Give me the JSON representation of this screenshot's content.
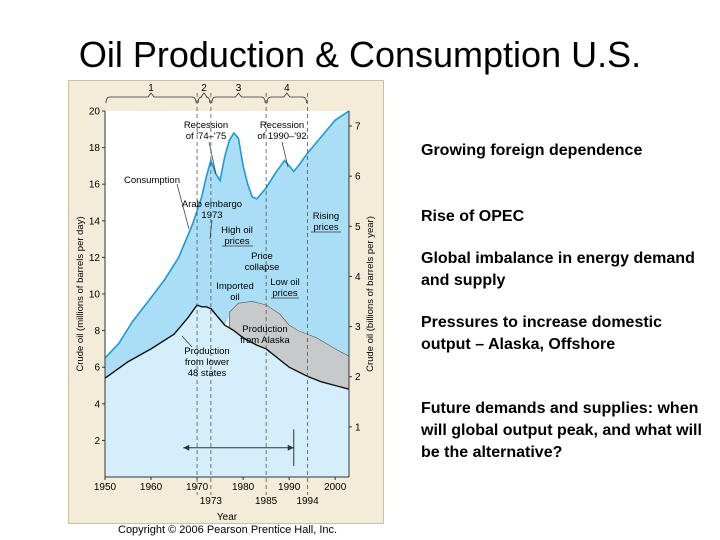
{
  "slide": {
    "title": "Oil Production & Consumption U.S.",
    "copyright": "Copyright © 2006 Pearson Prentice Hall, Inc.",
    "bullets": [
      "Growing foreign dependence",
      "Rise of OPEC",
      "Global imbalance in energy demand and supply",
      "Pressures to increase domestic output – Alaska, Offshore",
      "Future demands and supplies: when will global output peak, and what will be the alternative?"
    ]
  },
  "chart_data": {
    "type": "area",
    "xlabel": "Year",
    "ylabel": "Crude oil (millions of barrels per day)",
    "ylabel_right": "Crude oil (billions of barrels per year)",
    "xlim": [
      1950,
      2003
    ],
    "ylim": [
      0,
      20
    ],
    "ylim_right": [
      0,
      7.3
    ],
    "x_ticks": [
      "1950",
      "1960",
      "1970",
      "1980",
      "1990",
      "2000"
    ],
    "x_ticks_lower": [
      "1973",
      "1985",
      "1994"
    ],
    "y_ticks": [
      "2",
      "4",
      "6",
      "8",
      "10",
      "12",
      "14",
      "16",
      "18",
      "20"
    ],
    "y_ticks_right": [
      "1",
      "2",
      "3",
      "4",
      "5",
      "6",
      "7"
    ],
    "period_markers": [
      "1",
      "2",
      "3",
      "4"
    ],
    "series": [
      {
        "name": "Consumption",
        "x": [
          1950,
          1953,
          1956,
          1960,
          1963,
          1966,
          1969,
          1971,
          1972,
          1973,
          1974,
          1975,
          1976,
          1977,
          1978,
          1979,
          1980,
          1981,
          1982,
          1983,
          1985,
          1987,
          1989,
          1990,
          1991,
          1992,
          1994,
          1996,
          1998,
          2000,
          2003
        ],
        "values": [
          6.5,
          7.3,
          8.5,
          9.8,
          10.8,
          12.0,
          13.8,
          15.3,
          16.4,
          17.3,
          16.6,
          16.2,
          17.5,
          18.4,
          18.8,
          18.5,
          17.0,
          16.0,
          15.3,
          15.2,
          15.8,
          16.6,
          17.3,
          17.0,
          16.7,
          17.0,
          17.7,
          18.3,
          18.9,
          19.5,
          20.0
        ]
      },
      {
        "name": "Production from lower 48 states",
        "x": [
          1950,
          1955,
          1960,
          1965,
          1968,
          1970,
          1971,
          1972,
          1973,
          1974,
          1976,
          1978,
          1980,
          1983,
          1985,
          1988,
          1990,
          1994,
          1997,
          2000,
          2003
        ],
        "values": [
          5.4,
          6.3,
          7.0,
          7.8,
          8.7,
          9.4,
          9.3,
          9.3,
          9.2,
          8.9,
          8.3,
          8.0,
          7.6,
          7.2,
          7.0,
          6.4,
          6.0,
          5.5,
          5.2,
          5.0,
          4.8
        ]
      },
      {
        "name": "Production from Alaska",
        "x": [
          1977,
          1979,
          1982,
          1985,
          1988,
          1990,
          1992,
          1994,
          1996,
          1998,
          2000,
          2003
        ],
        "values": [
          9.0,
          9.5,
          9.6,
          9.4,
          8.9,
          8.3,
          8.0,
          7.8,
          7.6,
          7.3,
          7.0,
          6.6
        ]
      }
    ],
    "annotations": [
      "Recession of '74–'75",
      "Recession of 1990–'92",
      "Consumption",
      "Arab embargo 1973",
      "High oil prices",
      "Price collapse",
      "Imported oil",
      "Low oil prices",
      "Rising prices",
      "Production from Alaska",
      "Production from lower 48 states"
    ]
  }
}
